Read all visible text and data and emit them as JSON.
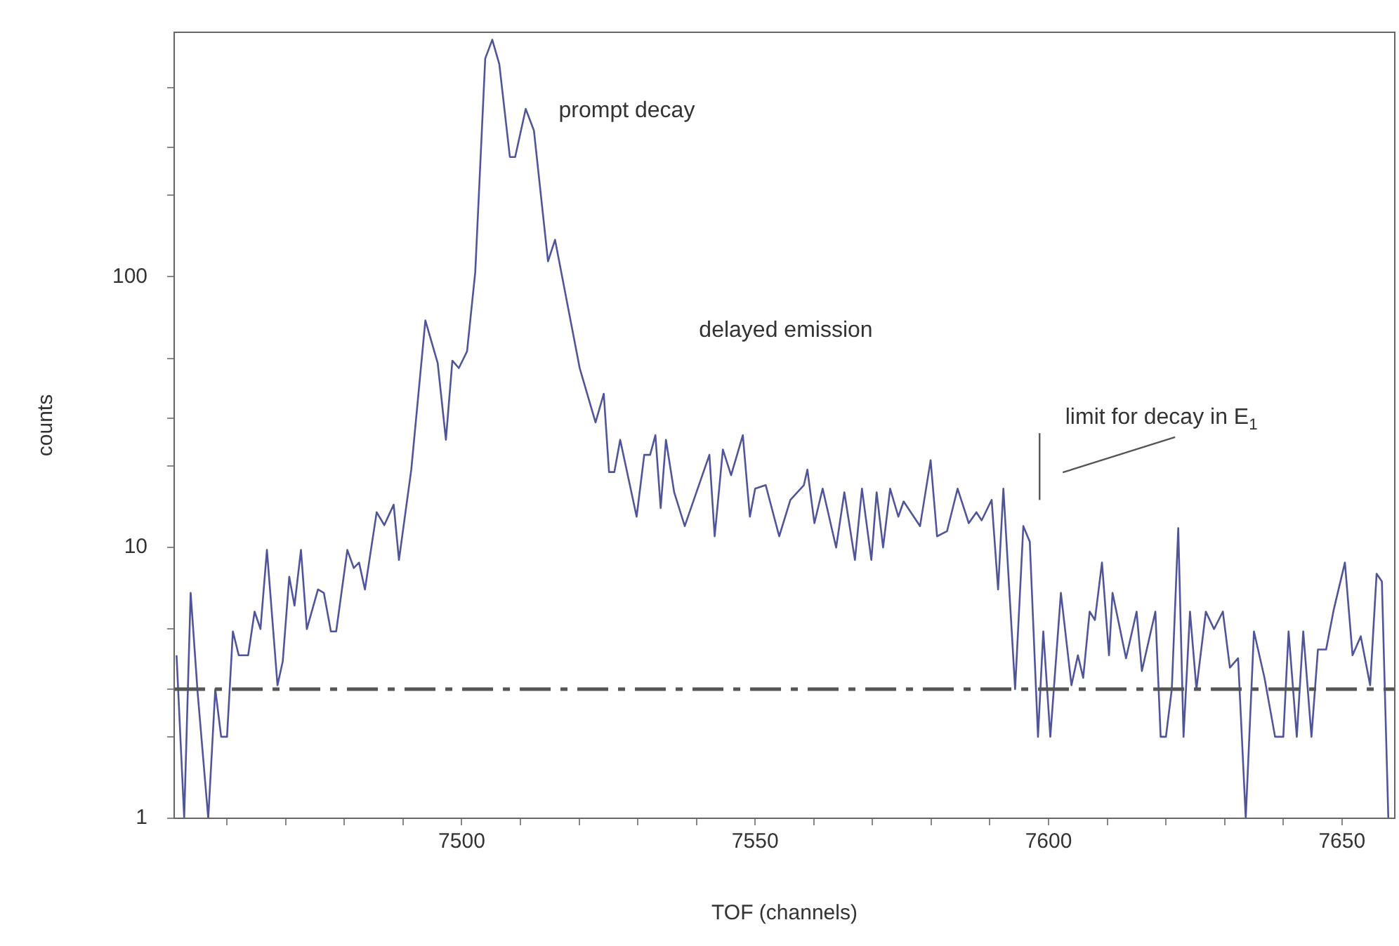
{
  "chart_data": {
    "type": "line",
    "xlabel": "TOF (channels)",
    "ylabel": "counts",
    "annotations": [
      "prompt decay",
      "delayed emission",
      "limit for decay in E$_{1}$"
    ],
    "x": [
      7451.4,
      7452.7,
      7453.8,
      7455,
      7456.8,
      7458,
      7459,
      7460,
      7461,
      7462,
      7463.6,
      7464.7,
      7465.7,
      7466.8,
      7468.6,
      7469.5,
      7470.6,
      7471.5,
      7472.6,
      7473.6,
      7475.5,
      7476.5,
      7477.7,
      7478.6,
      7480.5,
      7481.6,
      7482.5,
      7483.5,
      7485.5,
      7486.8,
      7488.4,
      7489.3,
      7491.4,
      7493.8,
      7495.9,
      7497.3,
      7498.4,
      7499.5,
      7500.9,
      7502.3,
      7504,
      7505.2,
      7506.4,
      7508.2,
      7509.1,
      7510.9,
      7512.3,
      7514.7,
      7515.9,
      7520.1,
      7522.8,
      7524.2,
      7525.1,
      7526,
      7527,
      7529.8,
      7531.1,
      7532.1,
      7533,
      7533.9,
      7534.8,
      7536.2,
      7538,
      7542.2,
      7543.1,
      7544.5,
      7545.9,
      7547.9,
      7549.1,
      7550,
      7551.8,
      7554.1,
      7556,
      7558.3,
      7558.9,
      7560.1,
      7561.5,
      7563.8,
      7565.2,
      7567,
      7568.2,
      7569.8,
      7570.7,
      7571.8,
      7573,
      7574.4,
      7575.3,
      7578.1,
      7579.9,
      7581,
      7582.7,
      7584.5,
      7586.4,
      7587.7,
      7588.6,
      7590.3,
      7591.4,
      7592.3,
      7594.3,
      7595.7,
      7596.8,
      7598.2,
      7599.1,
      7600.3,
      7602.1,
      7603.9,
      7605,
      7605.9,
      7607,
      7607.9,
      7609.1,
      7610.3,
      7610.9,
      7613.2,
      7615,
      7615.9,
      7618.2,
      7619.1,
      7620,
      7621,
      7622.1,
      7623,
      7624.1,
      7625.2,
      7626.8,
      7628.2,
      7629.7,
      7630.9,
      7632.3,
      7633.6,
      7635,
      7636.8,
      7638.6,
      7640,
      7640.9,
      7642.3,
      7643.4,
      7644.8,
      7645.9,
      7647.3,
      7648.6,
      7650.5,
      7651.8,
      7653.2,
      7654.8,
      7655.9,
      7656.8,
      7657.9
    ],
    "series": [
      {
        "color": "#50559a",
        "values": [
          4,
          1,
          6.8,
          2.9,
          1,
          3,
          2,
          2,
          4.9,
          4,
          4,
          5.8,
          5,
          9.8,
          3.1,
          3.8,
          7.8,
          6.1,
          9.8,
          5,
          7,
          6.8,
          4.9,
          4.9,
          9.8,
          8.4,
          8.8,
          7,
          13.5,
          12.1,
          14.4,
          9,
          19.4,
          69,
          48,
          25,
          49,
          46,
          53,
          104,
          640,
          751,
          610,
          277,
          277,
          417,
          347,
          114,
          137,
          46,
          29,
          37,
          19,
          19,
          25,
          13,
          22,
          22,
          26,
          14,
          25,
          16,
          12,
          22,
          11,
          23,
          18.5,
          26,
          13,
          16.5,
          17,
          11,
          15,
          17,
          19.4,
          12.3,
          16.5,
          10,
          16,
          9,
          16.5,
          9,
          16,
          10,
          16.5,
          13,
          14.8,
          12,
          21,
          11,
          11.5,
          16.5,
          12.3,
          13.5,
          12.6,
          15,
          7,
          16.5,
          3,
          12,
          10.5,
          2,
          4.9,
          2,
          6.8,
          3.1,
          4,
          3.3,
          5.8,
          5.4,
          8.8,
          4,
          6.8,
          3.9,
          5.8,
          3.5,
          5.8,
          2,
          2,
          3,
          11.8,
          2,
          5.8,
          3,
          5.8,
          5,
          5.8,
          3.6,
          3.9,
          1,
          4.9,
          3.3,
          2,
          2,
          4.9,
          2,
          4.9,
          2,
          4.2,
          4.2,
          5.9,
          8.8,
          4,
          4.7,
          3.1,
          8,
          7.5,
          1
        ]
      }
    ],
    "xlim": [
      7451,
      7659
    ],
    "xticks": [
      {
        "value": 7460,
        "label": null
      },
      {
        "value": 7470,
        "label": null
      },
      {
        "value": 7480,
        "label": null
      },
      {
        "value": 7490,
        "label": null
      },
      7500,
      {
        "value": 7510,
        "label": null
      },
      {
        "value": 7520,
        "label": null
      },
      {
        "value": 7530,
        "label": null
      },
      {
        "value": 7540,
        "label": null
      },
      7550,
      {
        "value": 7560,
        "label": null
      },
      {
        "value": 7570,
        "label": null
      },
      {
        "value": 7580,
        "label": null
      },
      {
        "value": 7590,
        "label": null
      },
      7600,
      {
        "value": 7610,
        "label": null
      },
      {
        "value": 7620,
        "label": null
      },
      {
        "value": 7630,
        "label": null
      },
      {
        "value": 7640,
        "label": null
      },
      7650
    ],
    "ylim": [
      1,
      800
    ],
    "yticks": [
      1,
      {
        "value": 2,
        "label": null
      },
      {
        "value": 3,
        "label": null
      },
      {
        "value": 5,
        "label": null
      },
      10,
      {
        "value": 20,
        "label": null
      },
      {
        "value": 30,
        "label": null
      },
      {
        "value": 50,
        "label": null
      },
      100,
      {
        "value": 200,
        "label": null
      },
      {
        "value": 300,
        "label": null
      },
      {
        "value": 500,
        "label": null
      }
    ],
    "log": "y",
    "grid": false,
    "marker": "none",
    "line_style": "solid",
    "legend": false,
    "ref_lines": [
      {
        "axis": "y",
        "value": 3,
        "color": "#555555",
        "line_style": "dashdot"
      }
    ]
  }
}
